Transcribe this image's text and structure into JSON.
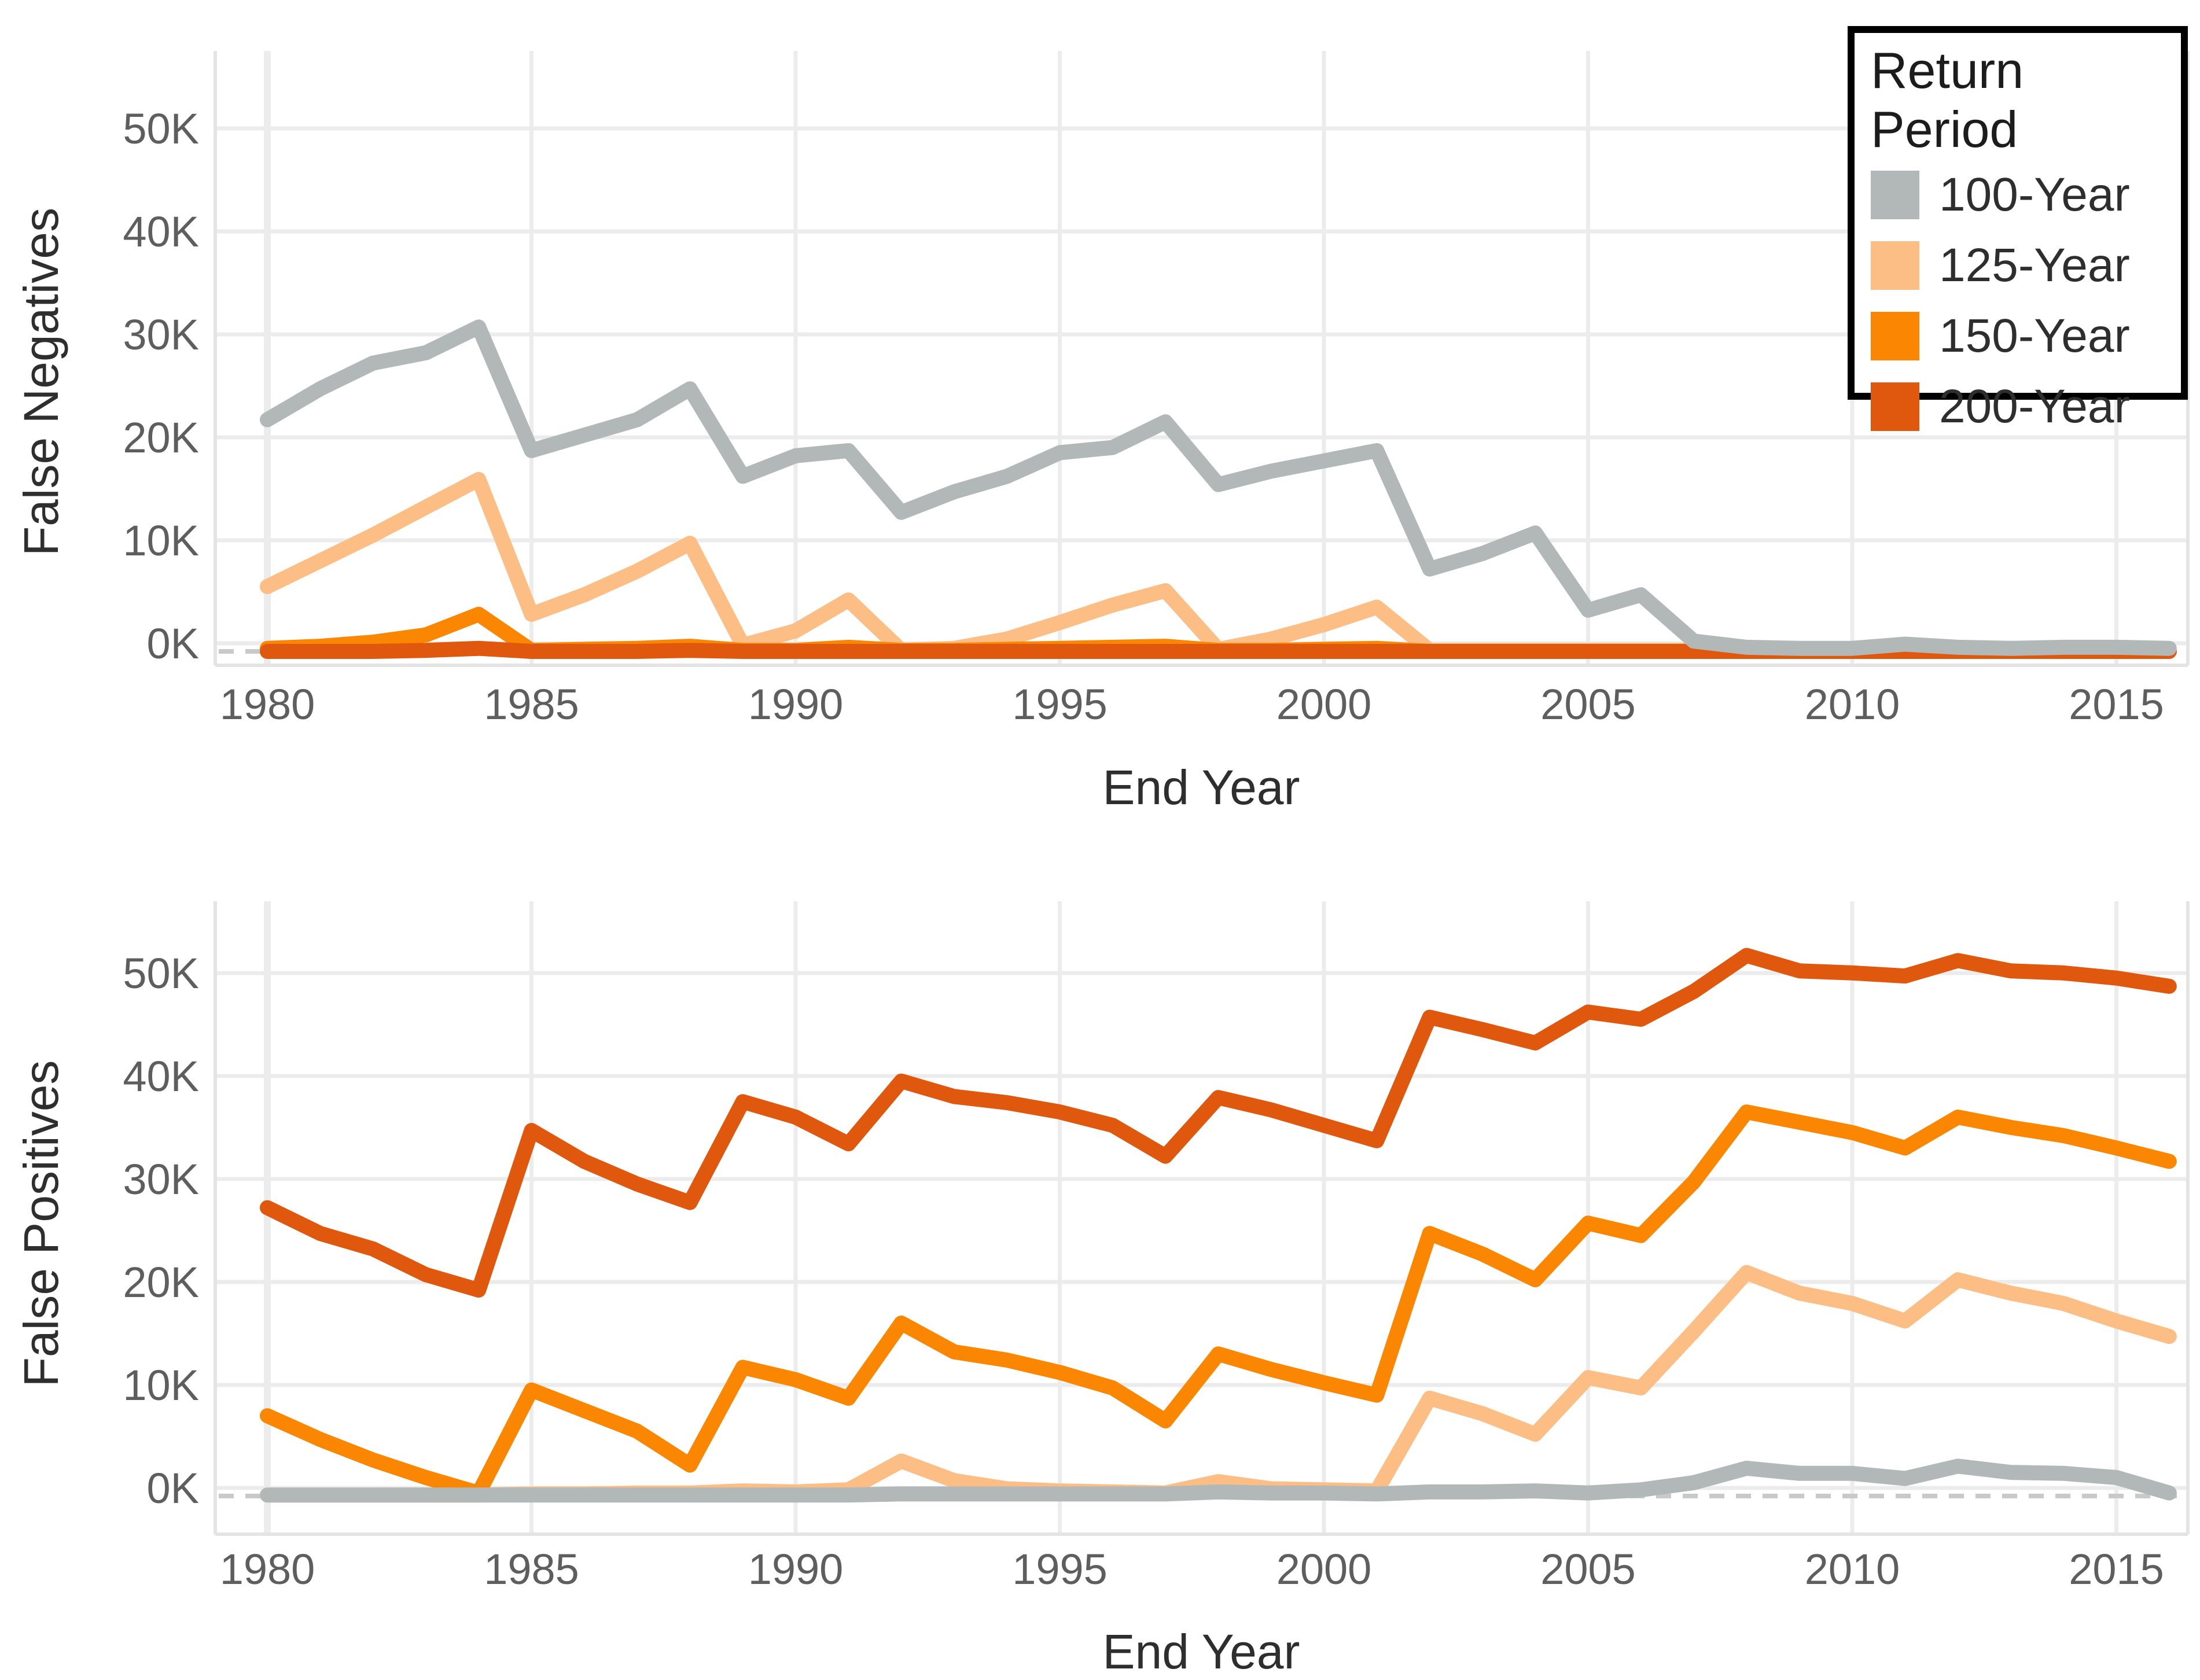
{
  "page": {
    "background": "#ffffff",
    "text_color": "#2e2e2e",
    "tick_color": "#5e5e5e",
    "gridline_color": "#ececec",
    "zero_line_color": "#c9c9c9"
  },
  "legend": {
    "title": "Return Period",
    "items": [
      {
        "label": "100-Year",
        "color": "#b2b8b8"
      },
      {
        "label": "125-Year",
        "color": "#fdbe85"
      },
      {
        "label": "150-Year",
        "color": "#fb8602"
      },
      {
        "label": "200-Year",
        "color": "#e0570e"
      }
    ]
  },
  "chart_data": [
    {
      "type": "line",
      "title": "",
      "xlabel": "End Year",
      "ylabel": "False Negatives",
      "x": [
        1980,
        1981,
        1982,
        1983,
        1984,
        1985,
        1986,
        1987,
        1988,
        1989,
        1990,
        1991,
        1992,
        1993,
        1994,
        1995,
        1996,
        1997,
        1998,
        1999,
        2000,
        2001,
        2002,
        2003,
        2004,
        2005,
        2006,
        2007,
        2008,
        2009,
        2010,
        2011,
        2012,
        2013,
        2014,
        2015,
        2016
      ],
      "xticks": [
        1980,
        1985,
        1990,
        1995,
        2000,
        2005,
        2010,
        2015
      ],
      "yticks": [
        0,
        10,
        20,
        30,
        40,
        50
      ],
      "ytick_labels": [
        "0K",
        "10K",
        "20K",
        "30K",
        "40K",
        "50K"
      ],
      "ylim": [
        -3,
        56
      ],
      "grid": true,
      "zero_reference_line": "dashed",
      "legend_position": "top-right",
      "series": [
        {
          "name": "100-Year",
          "color": "#b2b8b8",
          "values": [
            22.5,
            25.5,
            28,
            29,
            31.5,
            19.5,
            21,
            22.5,
            25.5,
            17,
            19,
            19.5,
            13.5,
            15.5,
            17,
            19.3,
            19.8,
            22.3,
            16.2,
            17.5,
            18.5,
            19.5,
            8,
            9.5,
            11.5,
            4,
            5.5,
            1,
            0.4,
            0.3,
            0.3,
            0.7,
            0.4,
            0.3,
            0.4,
            0.4,
            0.3
          ]
        },
        {
          "name": "125-Year",
          "color": "#fdbe85",
          "values": [
            6.3,
            8.8,
            11.3,
            14,
            16.7,
            3.6,
            5.5,
            7.8,
            10.5,
            0.6,
            2,
            5,
            0.1,
            0.3,
            1.2,
            2.8,
            4.5,
            5.9,
            0.2,
            1.2,
            2.6,
            4.3,
            0.1,
            0.1,
            0.1,
            0.1,
            0.1,
            0.1,
            0.1,
            0.1,
            0.1,
            0.1,
            0.1,
            0.1,
            0.1,
            0.1,
            0.1
          ]
        },
        {
          "name": "150-Year",
          "color": "#fb8602",
          "values": [
            0.3,
            0.5,
            0.9,
            1.6,
            3.6,
            0.1,
            0.2,
            0.3,
            0.5,
            0.1,
            0.1,
            0.4,
            0.1,
            0.1,
            0.2,
            0.3,
            0.4,
            0.5,
            0.1,
            0.1,
            0.2,
            0.3,
            0,
            0,
            0,
            0,
            0,
            0,
            0,
            0,
            0,
            0,
            0,
            0,
            0,
            0,
            0
          ]
        },
        {
          "name": "200-Year",
          "color": "#e0570e",
          "values": [
            0,
            0,
            0,
            0.1,
            0.3,
            0,
            0,
            0,
            0.1,
            0,
            0,
            0,
            0,
            0,
            0,
            0,
            0,
            0,
            0,
            0,
            0,
            0,
            0,
            0,
            0,
            0,
            0,
            0,
            0,
            0,
            0,
            0,
            0,
            0,
            0,
            0,
            0
          ]
        }
      ]
    },
    {
      "type": "line",
      "title": "",
      "xlabel": "End Year",
      "ylabel": "False Positives",
      "x": [
        1980,
        1981,
        1982,
        1983,
        1984,
        1985,
        1986,
        1987,
        1988,
        1989,
        1990,
        1991,
        1992,
        1993,
        1994,
        1995,
        1996,
        1997,
        1998,
        1999,
        2000,
        2001,
        2002,
        2003,
        2004,
        2005,
        2006,
        2007,
        2008,
        2009,
        2010,
        2011,
        2012,
        2013,
        2014,
        2015,
        2016
      ],
      "xticks": [
        1980,
        1985,
        1990,
        1995,
        2000,
        2005,
        2010,
        2015
      ],
      "yticks": [
        0,
        10,
        20,
        30,
        40,
        50
      ],
      "ytick_labels": [
        "0K",
        "10K",
        "20K",
        "30K",
        "40K",
        "50K"
      ],
      "ylim": [
        -3,
        56
      ],
      "grid": true,
      "zero_reference_line": "dashed",
      "series": [
        {
          "name": "100-Year",
          "color": "#b2b8b8",
          "values": [
            0.1,
            0.1,
            0.1,
            0.1,
            0.1,
            0.1,
            0.1,
            0.1,
            0.1,
            0.1,
            0.1,
            0.1,
            0.2,
            0.2,
            0.2,
            0.2,
            0.2,
            0.2,
            0.4,
            0.3,
            0.3,
            0.2,
            0.4,
            0.4,
            0.5,
            0.3,
            0.6,
            1.3,
            2.7,
            2.2,
            2.2,
            1.7,
            2.9,
            2.3,
            2.2,
            1.8,
            0.3
          ]
        },
        {
          "name": "125-Year",
          "color": "#fdbe85",
          "values": [
            0.1,
            0.1,
            0.1,
            0.1,
            0.1,
            0.2,
            0.2,
            0.3,
            0.3,
            0.5,
            0.4,
            0.6,
            3.4,
            1.5,
            0.7,
            0.5,
            0.4,
            0.3,
            1.4,
            0.7,
            0.6,
            0.5,
            9.5,
            8,
            6,
            11.5,
            10.5,
            16,
            21.7,
            19.7,
            18.7,
            17,
            21,
            19.7,
            18.7,
            17,
            15.5
          ]
        },
        {
          "name": "150-Year",
          "color": "#fb8602",
          "values": [
            7.8,
            5.5,
            3.5,
            1.8,
            0.3,
            10.3,
            8.3,
            6.3,
            3,
            12.5,
            11.3,
            9.5,
            16.8,
            14,
            13.2,
            12,
            10.5,
            7.3,
            13.8,
            12.3,
            11,
            9.8,
            25.5,
            23.5,
            21,
            26.5,
            25.3,
            30.5,
            37.3,
            36.3,
            35.3,
            33.8,
            36.8,
            35.8,
            35,
            33.8,
            32.5
          ]
        },
        {
          "name": "200-Year",
          "color": "#e0570e",
          "values": [
            28,
            25.5,
            24,
            21.5,
            20,
            35.5,
            32.5,
            30.3,
            28.5,
            38.3,
            36.8,
            34.2,
            40.3,
            38.8,
            38.2,
            37.3,
            36,
            33,
            38.7,
            37.5,
            36,
            34.5,
            46.5,
            45.3,
            44,
            47,
            46.3,
            49,
            52.5,
            51,
            50.8,
            50.5,
            52,
            51,
            50.8,
            50.3,
            49.5
          ]
        }
      ]
    }
  ]
}
